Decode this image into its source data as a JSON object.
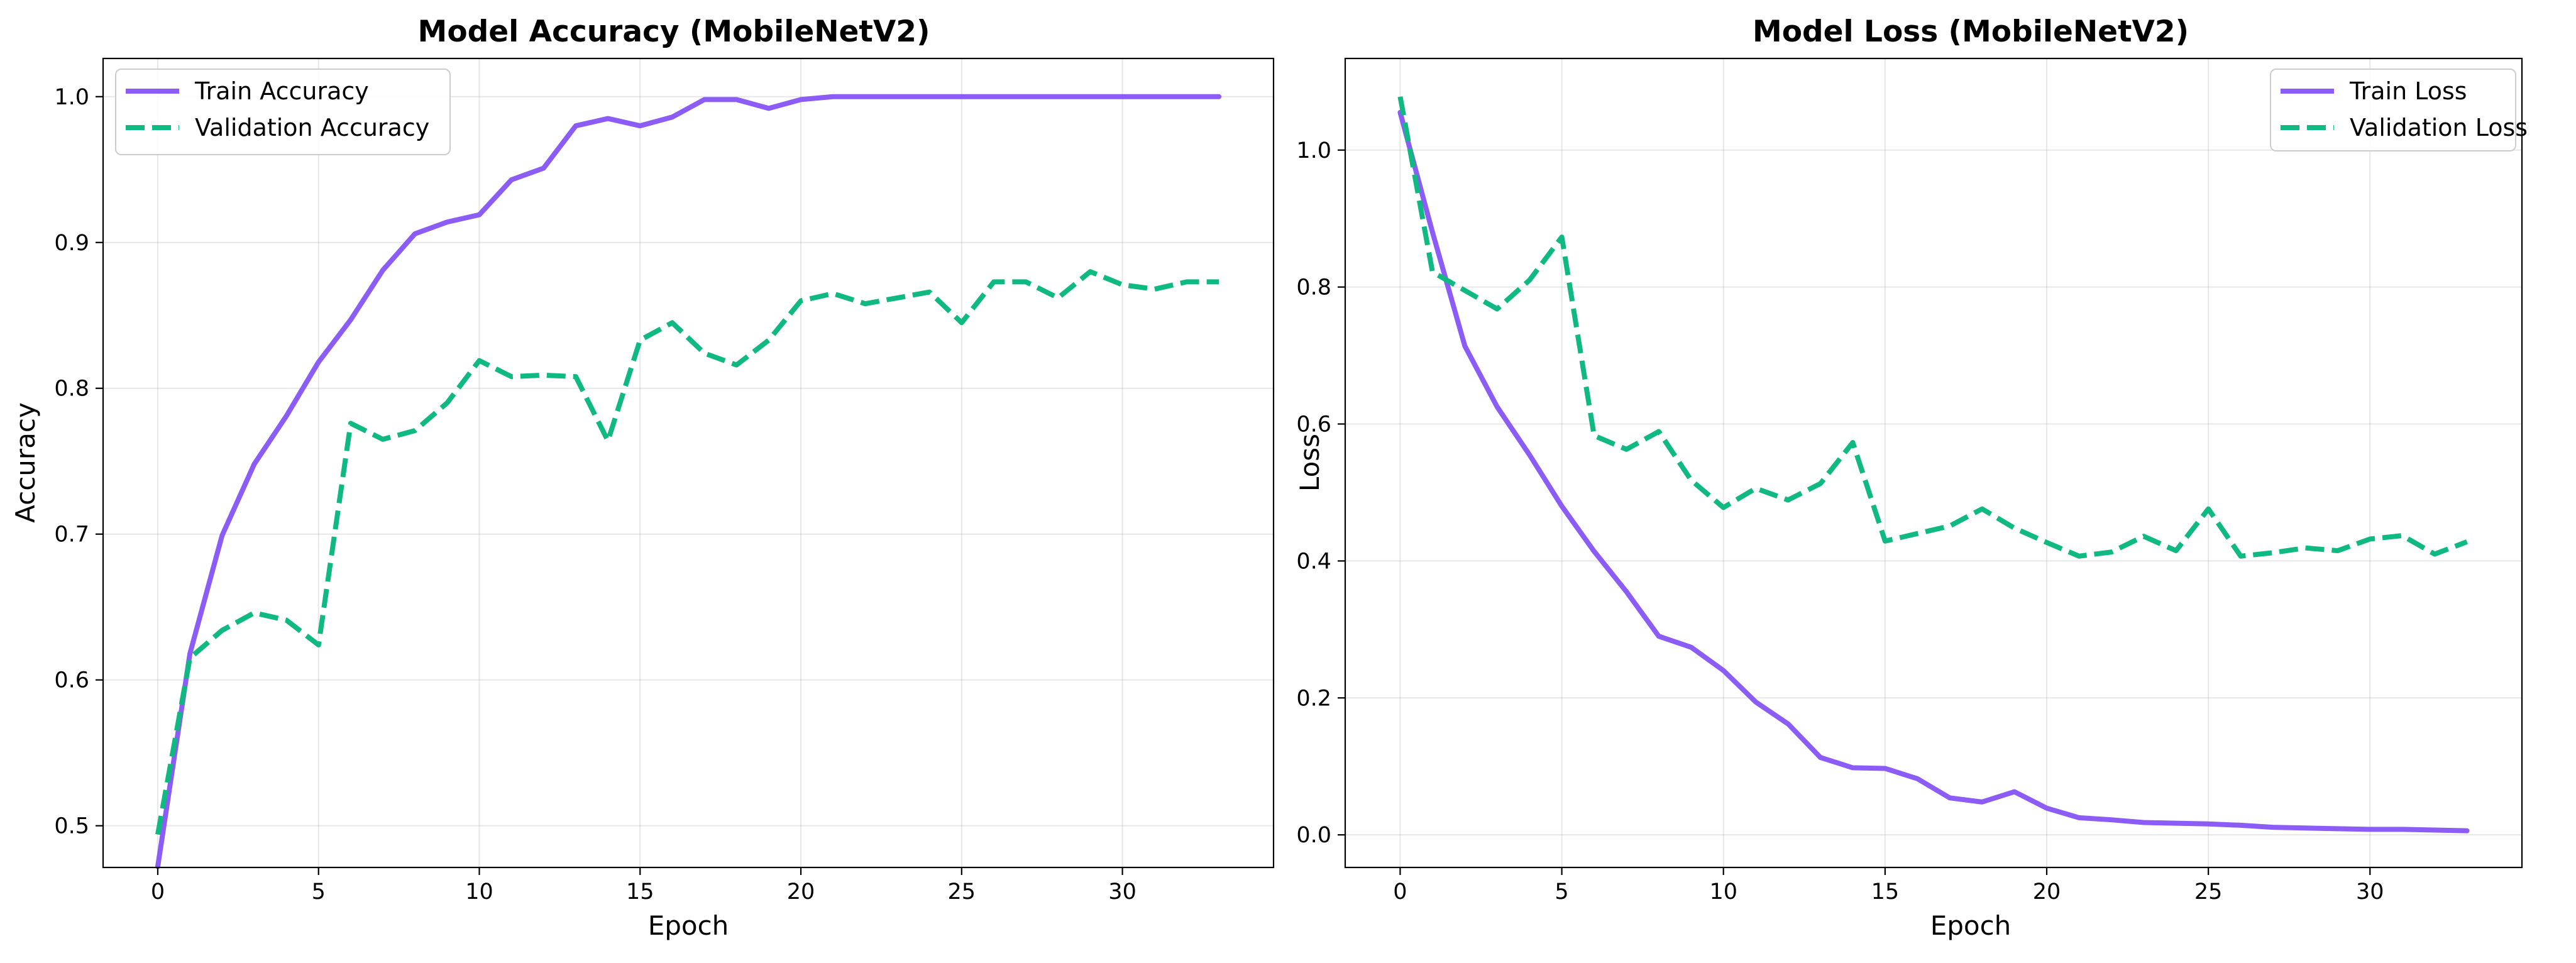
{
  "chart_data": [
    {
      "type": "line",
      "title": "Model Accuracy (MobileNetV2)",
      "xlabel": "Epoch",
      "ylabel": "Accuracy",
      "xlim": [
        -1.7,
        34.7
      ],
      "ylim": [
        0.4714,
        1.0262
      ],
      "xticks": [
        0,
        5,
        10,
        15,
        20,
        25,
        30
      ],
      "yticks": [
        0.5,
        0.6,
        0.7,
        0.8,
        0.9,
        1.0
      ],
      "ytick_labels": [
        "0.5",
        "0.6",
        "0.7",
        "0.8",
        "0.9",
        "1.0"
      ],
      "grid": true,
      "legend": "top-left",
      "x": [
        0,
        1,
        2,
        3,
        4,
        5,
        6,
        7,
        8,
        9,
        10,
        11,
        12,
        13,
        14,
        15,
        16,
        17,
        18,
        19,
        20,
        21,
        22,
        23,
        24,
        25,
        26,
        27,
        28,
        29,
        30,
        31,
        32,
        33
      ],
      "series": [
        {
          "name": "Train Accuracy",
          "color": "#8b5cf6",
          "style": "solid",
          "values": [
            0.472,
            0.618,
            0.699,
            0.748,
            0.781,
            0.818,
            0.847,
            0.881,
            0.906,
            0.914,
            0.919,
            0.943,
            0.951,
            0.98,
            0.985,
            0.98,
            0.986,
            0.998,
            0.998,
            0.992,
            0.998,
            1.0,
            1.0,
            1.0,
            1.0,
            1.0,
            1.0,
            1.0,
            1.0,
            1.0,
            1.0,
            1.0,
            1.0,
            1.0
          ]
        },
        {
          "name": "Validation Accuracy",
          "color": "#10b981",
          "style": "dashed",
          "values": [
            0.494,
            0.615,
            0.634,
            0.646,
            0.641,
            0.624,
            0.776,
            0.765,
            0.771,
            0.79,
            0.819,
            0.808,
            0.809,
            0.808,
            0.764,
            0.833,
            0.845,
            0.824,
            0.816,
            0.833,
            0.86,
            0.865,
            0.858,
            0.862,
            0.866,
            0.845,
            0.873,
            0.873,
            0.862,
            0.88,
            0.871,
            0.868,
            0.873,
            0.873
          ]
        }
      ]
    },
    {
      "type": "line",
      "title": "Model Loss (MobileNetV2)",
      "xlabel": "Epoch",
      "ylabel": "Loss",
      "xlim": [
        -1.7,
        34.7
      ],
      "ylim": [
        -0.0476,
        1.1338
      ],
      "xticks": [
        0,
        5,
        10,
        15,
        20,
        25,
        30
      ],
      "yticks": [
        0.0,
        0.2,
        0.4,
        0.6,
        0.8,
        1.0
      ],
      "ytick_labels": [
        "0.0",
        "0.2",
        "0.4",
        "0.6",
        "0.8",
        "1.0"
      ],
      "grid": true,
      "legend": "top-right",
      "x": [
        0,
        1,
        2,
        3,
        4,
        5,
        6,
        7,
        8,
        9,
        10,
        11,
        12,
        13,
        14,
        15,
        16,
        17,
        18,
        19,
        20,
        21,
        22,
        23,
        24,
        25,
        26,
        27,
        28,
        29,
        30,
        31,
        32,
        33
      ],
      "series": [
        {
          "name": "Train Loss",
          "color": "#8b5cf6",
          "style": "solid",
          "values": [
            1.055,
            0.88,
            0.714,
            0.625,
            0.555,
            0.48,
            0.414,
            0.355,
            0.29,
            0.274,
            0.24,
            0.194,
            0.162,
            0.113,
            0.098,
            0.097,
            0.082,
            0.054,
            0.048,
            0.063,
            0.039,
            0.025,
            0.022,
            0.018,
            0.017,
            0.016,
            0.014,
            0.011,
            0.01,
            0.009,
            0.008,
            0.008,
            0.007,
            0.006
          ]
        },
        {
          "name": "Validation Loss",
          "color": "#10b981",
          "style": "dashed",
          "values": [
            1.078,
            0.822,
            0.795,
            0.768,
            0.81,
            0.873,
            0.583,
            0.563,
            0.589,
            0.518,
            0.478,
            0.506,
            0.489,
            0.513,
            0.573,
            0.429,
            0.44,
            0.451,
            0.476,
            0.448,
            0.427,
            0.407,
            0.413,
            0.436,
            0.415,
            0.476,
            0.407,
            0.412,
            0.419,
            0.415,
            0.432,
            0.437,
            0.41,
            0.428
          ]
        }
      ]
    }
  ]
}
